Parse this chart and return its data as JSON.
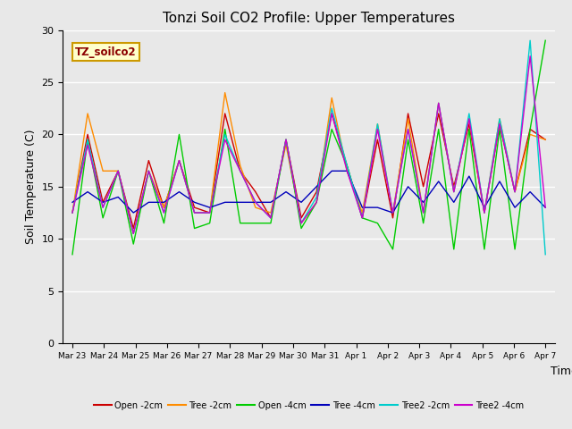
{
  "title": "Tonzi Soil CO2 Profile: Upper Temperatures",
  "xlabel": "Time",
  "ylabel": "Soil Temperature (C)",
  "ylim": [
    0,
    30
  ],
  "yticks": [
    0,
    5,
    10,
    15,
    20,
    25,
    30
  ],
  "background_color": "#e8e8e8",
  "plot_bg_color": "#e8e8e8",
  "legend_label": "TZ_soilco2",
  "x_labels": [
    "Mar 23",
    "Mar 24",
    "Mar 25",
    "Mar 26",
    "Mar 27",
    "Mar 28",
    "Mar 29",
    "Mar 30",
    "Mar 31",
    "Apr 1",
    "Apr 2",
    "Apr 3",
    "Apr 4",
    "Apr 5",
    "Apr 6",
    "Apr 7"
  ],
  "series": {
    "Open -2cm": {
      "color": "#cc0000",
      "data": [
        12.5,
        20.0,
        13.5,
        16.5,
        11.0,
        17.5,
        13.0,
        17.5,
        13.0,
        12.5,
        22.0,
        16.5,
        14.5,
        12.0,
        19.5,
        12.0,
        14.5,
        22.0,
        17.0,
        12.0,
        19.5,
        12.0,
        22.0,
        15.0,
        22.0,
        15.0,
        21.0,
        12.5,
        21.0,
        14.5,
        20.5,
        19.5
      ]
    },
    "Tree -2cm": {
      "color": "#ff8c00",
      "data": [
        12.5,
        22.0,
        16.5,
        16.5,
        10.5,
        16.5,
        13.0,
        17.5,
        12.5,
        12.5,
        24.0,
        17.0,
        13.0,
        12.5,
        19.0,
        11.5,
        13.5,
        23.5,
        16.5,
        12.5,
        21.0,
        12.5,
        21.5,
        12.5,
        23.0,
        14.5,
        21.5,
        12.5,
        21.5,
        14.5,
        20.0,
        19.5
      ]
    },
    "Open -4cm": {
      "color": "#00cc00",
      "data": [
        8.5,
        19.5,
        12.0,
        16.5,
        9.5,
        16.5,
        11.5,
        20.0,
        11.0,
        11.5,
        20.5,
        11.5,
        11.5,
        11.5,
        19.5,
        11.0,
        13.5,
        20.5,
        17.0,
        12.0,
        11.5,
        9.0,
        19.5,
        11.5,
        20.5,
        9.0,
        20.5,
        9.0,
        20.5,
        9.0,
        20.5,
        29.0
      ]
    },
    "Tree -4cm": {
      "color": "#0000bb",
      "data": [
        13.5,
        14.5,
        13.5,
        14.0,
        12.5,
        13.5,
        13.5,
        14.5,
        13.5,
        13.0,
        13.5,
        13.5,
        13.5,
        13.5,
        14.5,
        13.5,
        15.0,
        16.5,
        16.5,
        13.0,
        13.0,
        12.5,
        15.0,
        13.5,
        15.5,
        13.5,
        16.0,
        13.0,
        15.5,
        13.0,
        14.5,
        13.0
      ]
    },
    "Tree2 -2cm": {
      "color": "#00cccc",
      "data": [
        12.5,
        19.5,
        13.0,
        16.5,
        10.5,
        16.5,
        12.5,
        17.5,
        12.5,
        12.5,
        20.0,
        16.5,
        13.5,
        12.0,
        19.5,
        11.5,
        14.0,
        22.5,
        17.0,
        12.0,
        21.0,
        12.5,
        20.5,
        12.5,
        23.0,
        14.5,
        22.0,
        12.5,
        21.5,
        14.5,
        29.0,
        8.5
      ]
    },
    "Tree2 -4cm": {
      "color": "#cc00cc",
      "data": [
        12.5,
        19.0,
        13.0,
        16.5,
        10.5,
        16.5,
        12.5,
        17.5,
        12.5,
        12.5,
        19.5,
        16.5,
        13.5,
        12.0,
        19.5,
        11.5,
        13.5,
        22.0,
        16.5,
        12.0,
        20.5,
        12.5,
        20.5,
        12.5,
        23.0,
        14.5,
        21.5,
        12.5,
        21.0,
        14.5,
        27.5,
        13.0
      ]
    }
  }
}
